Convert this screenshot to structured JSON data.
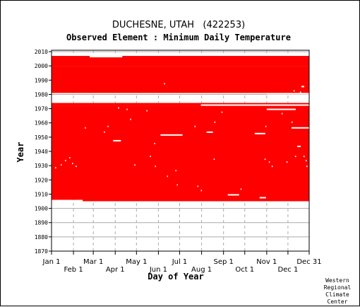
{
  "chart_data": {
    "type": "heatmap",
    "title": "DUCHESNE, UTAH   (422253)",
    "subtitle": "Observed Element : Minimum Daily Temperature",
    "xlabel": "Day of Year",
    "ylabel": "Year",
    "x_ticks_row1": [
      "Jan 1",
      "Mar 1",
      "May 1",
      "Jul 1",
      "Sep 1",
      "Nov 1",
      "Dec 31"
    ],
    "x_ticks_row2": [
      "Feb 1",
      "Apr 1",
      "Jun 1",
      "Aug 1",
      "Oct 1",
      "Dec 1"
    ],
    "x_tick_days_row1": [
      1,
      60,
      121,
      182,
      244,
      305,
      365
    ],
    "x_tick_days_row2": [
      32,
      91,
      152,
      213,
      274,
      335
    ],
    "y_ticks": [
      1870,
      1880,
      1890,
      1900,
      1910,
      1920,
      1930,
      1940,
      1950,
      1960,
      1970,
      1980,
      1990,
      2000,
      2010
    ],
    "xlim": [
      1,
      365
    ],
    "ylim": [
      1870,
      2011
    ],
    "data_color": "#ff0000",
    "grid_color": "#aaaaaa",
    "coverage": [
      {
        "year_start": 2000,
        "year_end": 2006,
        "day_start": 1,
        "day_end": 365
      },
      {
        "year_start": 1981,
        "year_end": 1999,
        "day_start": 1,
        "day_end": 365
      },
      {
        "year_start": 1973,
        "year_end": 1973,
        "day_start": 1,
        "day_end": 365
      },
      {
        "year_start": 1972,
        "year_end": 1972,
        "day_start": 1,
        "day_end": 365
      },
      {
        "year_start": 1906,
        "year_end": 1971,
        "day_start": 1,
        "day_end": 365
      },
      {
        "year_start": 1905,
        "year_end": 1905,
        "day_start": 45,
        "day_end": 365
      }
    ],
    "missing": [
      {
        "year_start": 2006,
        "year_end": 2006,
        "day_start": 55,
        "day_end": 100
      },
      {
        "year_start": 1980,
        "year_end": 1980,
        "day_start": 305,
        "day_end": 365
      },
      {
        "year_start": 1972,
        "year_end": 1972,
        "day_start": 212,
        "day_end": 365
      },
      {
        "year_start": 1969,
        "year_end": 1969,
        "day_start": 305,
        "day_end": 345
      },
      {
        "year_start": 1956,
        "year_end": 1956,
        "day_start": 340,
        "day_end": 365
      },
      {
        "year_start": 1953,
        "year_end": 1953,
        "day_start": 220,
        "day_end": 228
      },
      {
        "year_start": 1952,
        "year_end": 1952,
        "day_start": 288,
        "day_end": 302
      },
      {
        "year_start": 1951,
        "year_end": 1951,
        "day_start": 155,
        "day_end": 185
      },
      {
        "year_start": 1947,
        "year_end": 1947,
        "day_start": 88,
        "day_end": 98
      },
      {
        "year_start": 1943,
        "year_end": 1943,
        "day_start": 348,
        "day_end": 352
      },
      {
        "year_start": 1909,
        "year_end": 1909,
        "day_start": 250,
        "day_end": 265
      },
      {
        "year_start": 1907,
        "year_end": 1907,
        "day_start": 295,
        "day_end": 303
      },
      {
        "year_start": 1985,
        "year_end": 1985,
        "day_start": 354,
        "day_end": 357
      }
    ],
    "missing_days": [
      [
        1928,
        6
      ],
      [
        1930,
        14
      ],
      [
        1933,
        20
      ],
      [
        1935,
        26
      ],
      [
        1931,
        30
      ],
      [
        1929,
        35
      ],
      [
        1956,
        48
      ],
      [
        1953,
        75
      ],
      [
        1957,
        80
      ],
      [
        1970,
        95
      ],
      [
        1969,
        107
      ],
      [
        1962,
        112
      ],
      [
        1930,
        118
      ],
      [
        1968,
        135
      ],
      [
        1936,
        140
      ],
      [
        1929,
        147
      ],
      [
        1922,
        164
      ],
      [
        1987,
        160
      ],
      [
        1926,
        176
      ],
      [
        1916,
        178
      ],
      [
        1957,
        203
      ],
      [
        1915,
        207
      ],
      [
        1912,
        212
      ],
      [
        1934,
        230
      ],
      [
        1967,
        241
      ],
      [
        1976,
        263
      ],
      [
        1913,
        268
      ],
      [
        1934,
        302
      ],
      [
        1957,
        303
      ],
      [
        1932,
        308
      ],
      [
        1929,
        312
      ],
      [
        1966,
        326
      ],
      [
        1932,
        333
      ],
      [
        1960,
        340
      ],
      [
        1936,
        345
      ],
      [
        1936,
        357
      ],
      [
        1933,
        360
      ],
      [
        1929,
        361
      ],
      [
        1981,
        352
      ],
      [
        1982,
        343
      ],
      [
        1960,
        231
      ],
      [
        1945,
        146
      ]
    ]
  },
  "credit": [
    "Western",
    "Regional",
    "Climate",
    "Center"
  ]
}
